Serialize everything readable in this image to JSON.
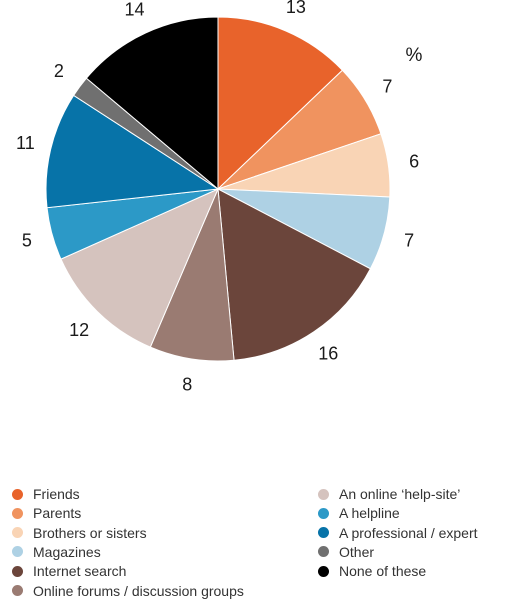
{
  "chart_data": {
    "type": "pie",
    "unit_label": "%",
    "slices": [
      {
        "label": "Friends",
        "value": 13,
        "color": "#e8632b"
      },
      {
        "label": "Parents",
        "value": 7,
        "color": "#f0935f"
      },
      {
        "label": "Brothers or sisters",
        "value": 6,
        "color": "#f9d4b5"
      },
      {
        "label": "Magazines",
        "value": 7,
        "color": "#aed1e4"
      },
      {
        "label": "Internet search",
        "value": 16,
        "color": "#6b453b"
      },
      {
        "label": "Online forums / discussion groups",
        "value": 8,
        "color": "#9a7b72"
      },
      {
        "label": "An online ‘help-site’",
        "value": 12,
        "color": "#d5c3be"
      },
      {
        "label": "A helpline",
        "value": 5,
        "color": "#2c99c7"
      },
      {
        "label": "A professional / expert",
        "value": 11,
        "color": "#0773a8"
      },
      {
        "label": "Other",
        "value": 2,
        "color": "#707070"
      },
      {
        "label": "None of these",
        "value": 14,
        "color": "#000000"
      }
    ]
  }
}
